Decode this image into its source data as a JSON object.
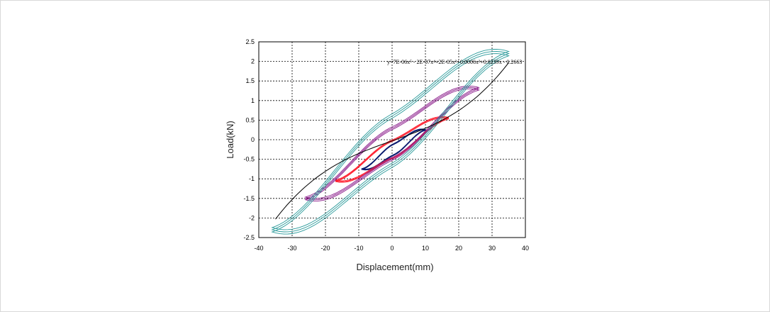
{
  "chart_data": {
    "type": "line",
    "title": "",
    "xlabel": "Displacement(mm)",
    "ylabel": "Load(kN)",
    "xlim": [
      -40,
      40
    ],
    "ylim": [
      -2.5,
      2.5
    ],
    "xticks": [
      -40,
      -30,
      -20,
      -10,
      0,
      10,
      20,
      30,
      40
    ],
    "yticks": [
      2.5,
      2,
      1.5,
      1,
      0.5,
      0,
      -0.5,
      -1,
      -1.5,
      -2,
      -2.5
    ],
    "xtick_labels": [
      "-40",
      "-30",
      "-20",
      "-10",
      "0",
      "10",
      "20",
      "30",
      "40"
    ],
    "ytick_labels": [
      "2.5",
      "2",
      "1.5",
      "1",
      "0.5",
      "0",
      "-0.5",
      "-1",
      "-1.5",
      "-2",
      "-2.5"
    ],
    "grid": true,
    "equation": "y=7E-06x⁵ - 2E-07x⁴+2E-05x³+0.0006x²+0.0239x - 0.2663",
    "loops": [
      {
        "color": "#0a1a6e",
        "xmin": -9,
        "xmax": 10,
        "ymin": -0.75,
        "ymax": 0.25
      },
      {
        "color": "#ff1a2a",
        "xmin": -17,
        "xmax": 17,
        "ymin": -1.05,
        "ymax": 0.55
      },
      {
        "color": "#8a1a8a",
        "xmin": -26,
        "xmax": 26,
        "ymin": -1.5,
        "ymax": 1.3
      },
      {
        "color": "#2a9a9a",
        "xmin": -36,
        "xmax": 35,
        "ymin": -2.3,
        "ymax": 2.2
      }
    ],
    "fit_curve": {
      "color": "#000000",
      "xmin": -35,
      "xmax": 35
    }
  }
}
